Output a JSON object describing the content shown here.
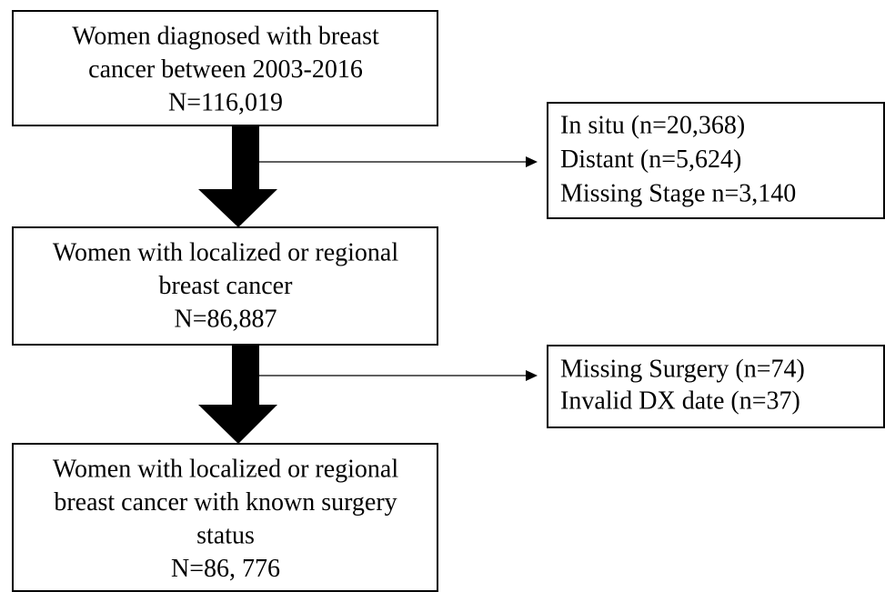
{
  "nodes": [
    {
      "lines": [
        "Women diagnosed with breast",
        "cancer between 2003-2016",
        "N=116,019"
      ]
    },
    {
      "lines": [
        "Women with localized or regional",
        "breast cancer",
        "N=86,887"
      ]
    },
    {
      "lines": [
        "Women with localized or regional",
        "breast cancer with known surgery",
        "status",
        "N=86, 776"
      ]
    }
  ],
  "exclusions": [
    {
      "lines": [
        "In situ (n=20,368)",
        "Distant (n=5,624)",
        "Missing Stage n=3,140"
      ]
    },
    {
      "lines": [
        "Missing Surgery (n=74)",
        "Invalid DX date (n=37)"
      ]
    }
  ]
}
